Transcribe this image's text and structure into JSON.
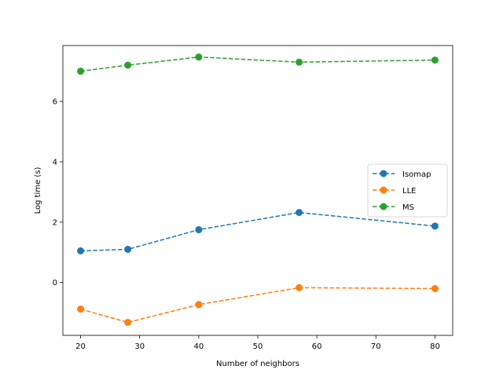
{
  "chart_data": {
    "type": "line",
    "xlabel": "Number of neighbors",
    "ylabel": "Log time (s)",
    "xlim": [
      17,
      83
    ],
    "ylim": [
      -1.75,
      7.85
    ],
    "xticks": [
      20,
      30,
      40,
      50,
      60,
      70,
      80
    ],
    "yticks": [
      0,
      2,
      4,
      6
    ],
    "legend_position": "center-right",
    "grid": false,
    "series": [
      {
        "name": "Isomap",
        "color": "#1f77b4",
        "linestyle": "dashed",
        "marker": "circle",
        "x": [
          20,
          28,
          40,
          57,
          80
        ],
        "y": [
          1.05,
          1.1,
          1.75,
          2.32,
          1.87
        ]
      },
      {
        "name": "LLE",
        "color": "#ff7f0e",
        "linestyle": "dashed",
        "marker": "circle",
        "x": [
          20,
          28,
          40,
          57,
          80
        ],
        "y": [
          -0.88,
          -1.32,
          -0.73,
          -0.17,
          -0.2
        ]
      },
      {
        "name": "MS",
        "color": "#2ca02c",
        "linestyle": "dashed",
        "marker": "circle",
        "x": [
          20,
          28,
          40,
          57,
          80
        ],
        "y": [
          7.0,
          7.2,
          7.47,
          7.3,
          7.37
        ]
      }
    ]
  }
}
